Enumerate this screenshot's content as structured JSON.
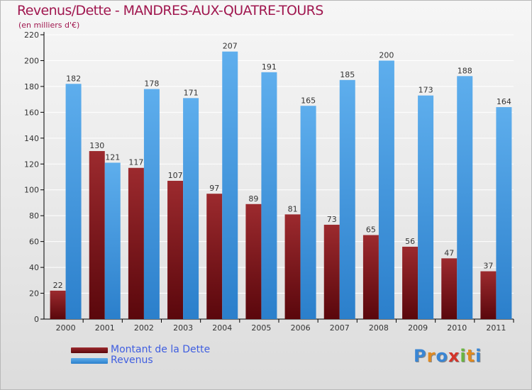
{
  "header": {
    "title": "Revenus/Dette - MANDRES-AUX-QUATRE-TOURS",
    "subtitle": "(en milliers d'€)"
  },
  "legend": {
    "items": [
      {
        "label": "Montant de la Dette",
        "color": "#6b0c12"
      },
      {
        "label": "Revenus",
        "color": "#3a94e0"
      }
    ]
  },
  "logo": {
    "letters": [
      {
        "ch": "P",
        "color": "#3a86d4"
      },
      {
        "ch": "r",
        "color": "#e08a22"
      },
      {
        "ch": "o",
        "color": "#3a86d4"
      },
      {
        "ch": "x",
        "color": "#d4342a"
      },
      {
        "ch": "i",
        "color": "#6ab540"
      },
      {
        "ch": "t",
        "color": "#e08a22"
      },
      {
        "ch": "i",
        "color": "#3a86d4"
      }
    ]
  },
  "chart_data": {
    "type": "bar",
    "title": "Revenus/Dette - MANDRES-AUX-QUATRE-TOURS",
    "subtitle": "(en milliers d'€)",
    "categories": [
      "2000",
      "2001",
      "2002",
      "2003",
      "2004",
      "2005",
      "2006",
      "2007",
      "2008",
      "2009",
      "2010",
      "2011"
    ],
    "series": [
      {
        "name": "Montant de la Dette",
        "color": "#6b0c12",
        "values": [
          22,
          130,
          117,
          107,
          97,
          89,
          81,
          73,
          65,
          56,
          47,
          37
        ]
      },
      {
        "name": "Revenus",
        "color": "#3a94e0",
        "values": [
          182,
          121,
          178,
          171,
          207,
          191,
          165,
          185,
          200,
          173,
          188,
          164
        ]
      }
    ],
    "ylim": [
      0,
      220
    ],
    "yticks": [
      0,
      20,
      40,
      60,
      80,
      100,
      120,
      140,
      160,
      180,
      200,
      220
    ],
    "grid": true,
    "legend_position": "bottom-left"
  }
}
